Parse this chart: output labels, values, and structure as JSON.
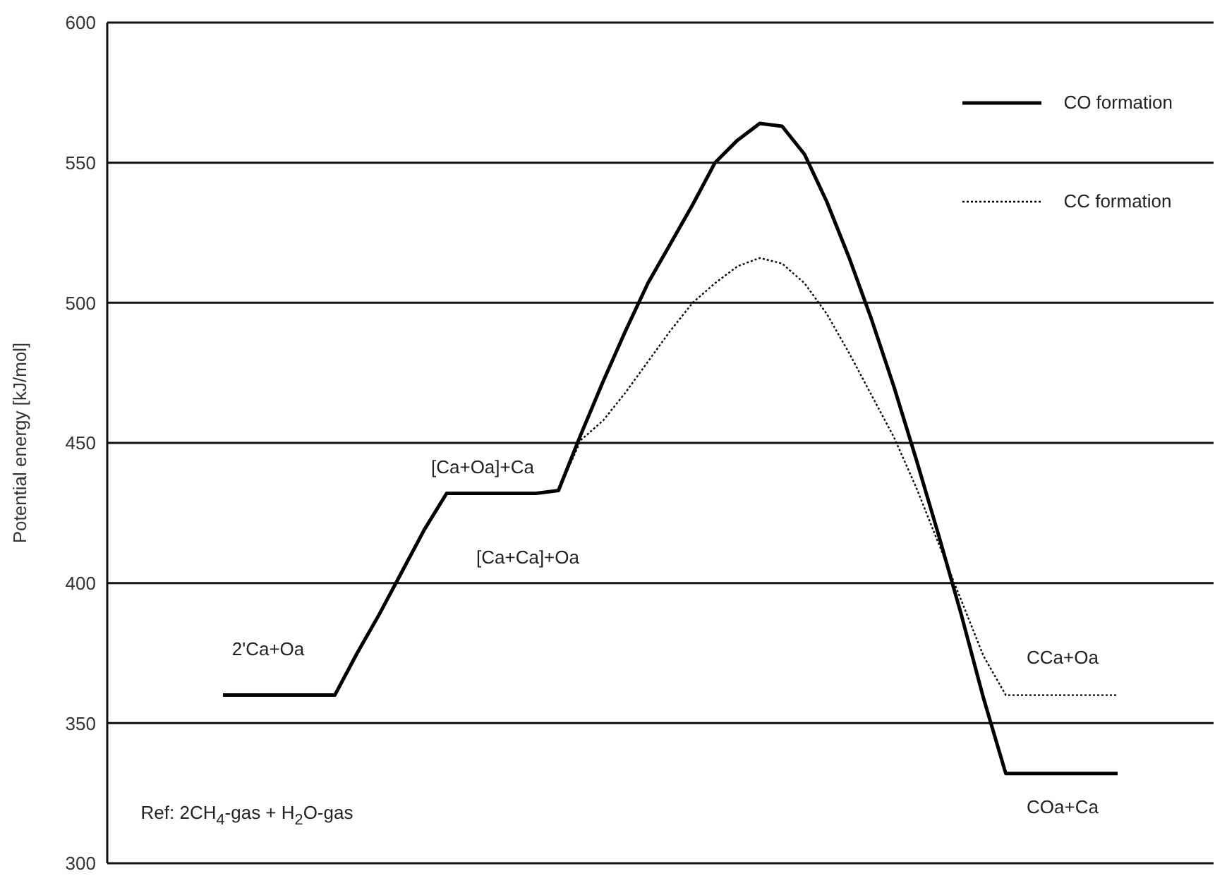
{
  "chart_data": {
    "type": "line",
    "ylabel": "Potential energy [kJ/mol]",
    "categories": [
      null,
      null,
      null,
      null,
      null,
      null,
      null,
      null,
      null,
      null,
      null,
      null,
      null,
      null,
      null,
      null,
      null,
      null,
      null,
      null,
      null,
      null,
      null,
      null,
      null,
      null,
      null,
      null,
      null,
      null,
      null,
      null,
      null,
      null,
      null,
      null,
      null,
      null,
      null,
      null,
      null
    ],
    "ylim": [
      300,
      600
    ],
    "yticks": [
      300,
      350,
      400,
      450,
      500,
      550,
      600
    ],
    "tick_labels": "y",
    "grid": "y",
    "legend": "top right",
    "marker": "none",
    "series": [
      {
        "name": "CO formation",
        "color": "#000000",
        "line_style": "solid",
        "values": [
          360,
          360,
          360,
          360,
          360,
          360,
          375,
          389,
          404,
          419,
          432,
          432,
          432,
          432,
          432,
          433,
          453,
          472,
          490,
          507,
          521,
          535,
          550,
          558,
          564,
          563,
          553,
          536,
          516,
          494,
          470,
          444,
          417,
          389,
          359,
          332,
          332,
          332,
          332,
          332,
          332
        ]
      },
      {
        "name": "CC formation",
        "color": "#000000",
        "line_style": "dotted",
        "values": [
          null,
          null,
          null,
          null,
          null,
          null,
          null,
          null,
          null,
          null,
          null,
          null,
          null,
          null,
          null,
          433,
          451,
          458,
          468,
          479,
          490,
          500,
          507,
          513,
          516,
          514,
          507,
          496,
          482,
          467,
          452,
          434,
          414,
          394,
          374,
          360,
          360,
          360,
          360,
          360,
          360
        ]
      }
    ],
    "annotations": [
      "2'Ca+Oa",
      "[Ca+Oa]+Ca",
      "[Ca+Ca]+Oa",
      "CCa+Oa",
      "COa+Ca",
      "Ref: 2CH$_{4}$-gas + H$_{2}$O-gas"
    ]
  }
}
